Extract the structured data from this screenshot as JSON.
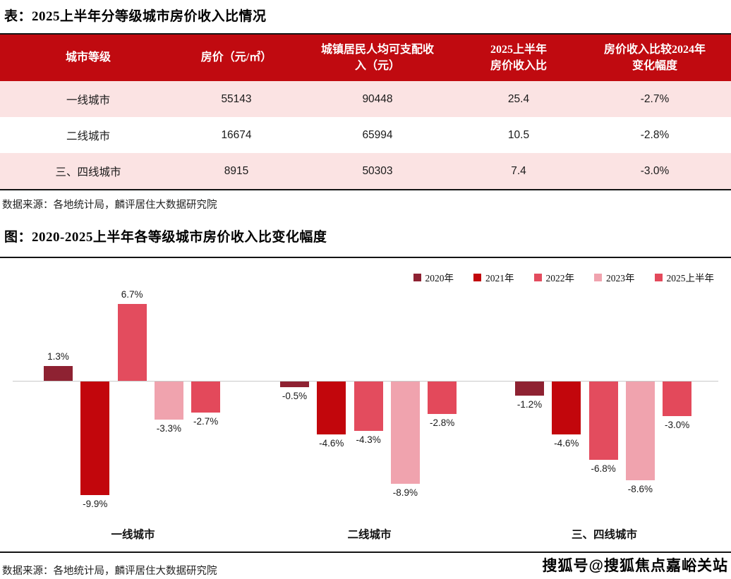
{
  "page": {
    "table_title": "表：2025上半年分等级城市房价收入比情况",
    "table_source": "数据来源：各地统计局，麟评居住大数据研究院",
    "chart_title": "图：2020-2025上半年各等级城市房价收入比变化幅度",
    "chart_source": "数据来源：各地统计局，麟评居住大数据研究院",
    "watermark": "搜狐号@搜狐焦点嘉峪关站"
  },
  "colors": {
    "table_header_bg": "#c00a10",
    "table_row_alt_bg": "#fbe3e3",
    "divider": "#141414",
    "axis_line": "#c9c9c9"
  },
  "chart_data": [
    {
      "type": "table",
      "title": "表：2025上半年分等级城市房价收入比情况",
      "columns": [
        "城市等级",
        "房价（元/㎡）",
        "城镇居民人均可支配收\n入（元）",
        "2025上半年\n房价收入比",
        "房价收入比较2024年\n变化幅度"
      ],
      "rows": [
        [
          "一线城市",
          "55143",
          "90448",
          "25.4",
          "-2.7%"
        ],
        [
          "二线城市",
          "16674",
          "65994",
          "10.5",
          "-2.8%"
        ],
        [
          "三、四线城市",
          "8915",
          "50303",
          "7.4",
          "-3.0%"
        ]
      ],
      "source": "数据来源：各地统计局，麟评居住大数据研究院"
    },
    {
      "type": "bar",
      "title": "图：2020-2025上半年各等级城市房价收入比变化幅度",
      "categories": [
        "一线城市",
        "二线城市",
        "三、四线城市"
      ],
      "series": [
        {
          "name": "2020年",
          "color": "#8e2232",
          "values": [
            1.3,
            -0.5,
            -1.2
          ]
        },
        {
          "name": "2021年",
          "color": "#c2060c",
          "values": [
            -9.9,
            -4.6,
            -4.6
          ]
        },
        {
          "name": "2022年",
          "color": "#e34c5e",
          "values": [
            6.7,
            -4.3,
            -6.8
          ]
        },
        {
          "name": "2023年",
          "color": "#f0a3ae",
          "values": [
            -3.3,
            -8.9,
            -8.6
          ]
        },
        {
          "name": "2025上半年",
          "color": "#e3495b",
          "values": [
            -2.7,
            -2.8,
            -3.0
          ]
        }
      ],
      "value_suffix": "%",
      "ylim": [
        -11.5,
        8.5
      ],
      "legend_position": "top-right",
      "grid": false,
      "data_labels": true,
      "xlabel": "",
      "ylabel": ""
    }
  ]
}
